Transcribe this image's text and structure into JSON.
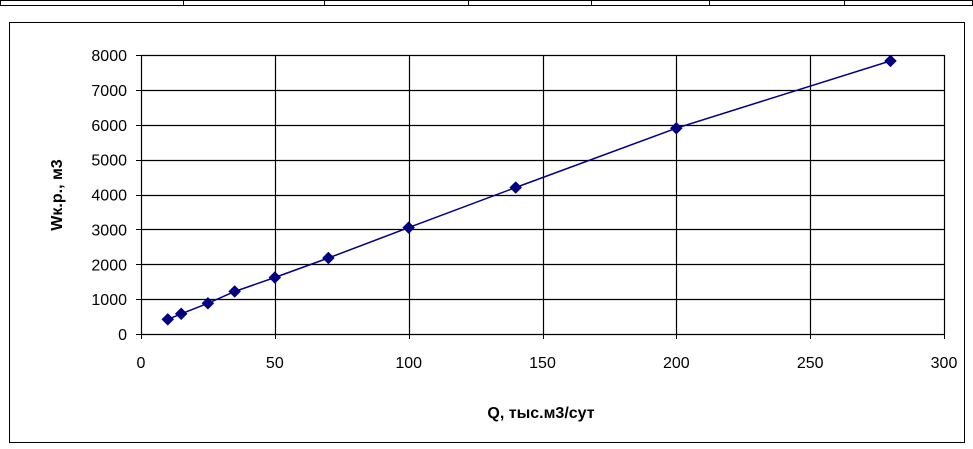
{
  "chart_data": {
    "type": "scatter",
    "xlabel": "Q, тыс.м3/сут",
    "ylabel": "Wк.р., м3",
    "xlim": [
      0,
      300
    ],
    "ylim": [
      0,
      8000
    ],
    "x_ticks": [
      0,
      50,
      100,
      150,
      200,
      250,
      300
    ],
    "y_ticks": [
      0,
      1000,
      2000,
      3000,
      4000,
      5000,
      6000,
      7000,
      8000
    ],
    "grid": true,
    "legend": "none",
    "series": [
      {
        "points": [
          {
            "x": 10,
            "y": 420
          },
          {
            "x": 15,
            "y": 580
          },
          {
            "x": 25,
            "y": 880
          },
          {
            "x": 35,
            "y": 1220
          },
          {
            "x": 50,
            "y": 1620
          },
          {
            "x": 70,
            "y": 2180
          },
          {
            "x": 100,
            "y": 3050
          },
          {
            "x": 140,
            "y": 4200
          },
          {
            "x": 200,
            "y": 5900
          },
          {
            "x": 280,
            "y": 7830
          }
        ],
        "color": "#000080",
        "marker": "diamond",
        "connected": true
      }
    ]
  }
}
